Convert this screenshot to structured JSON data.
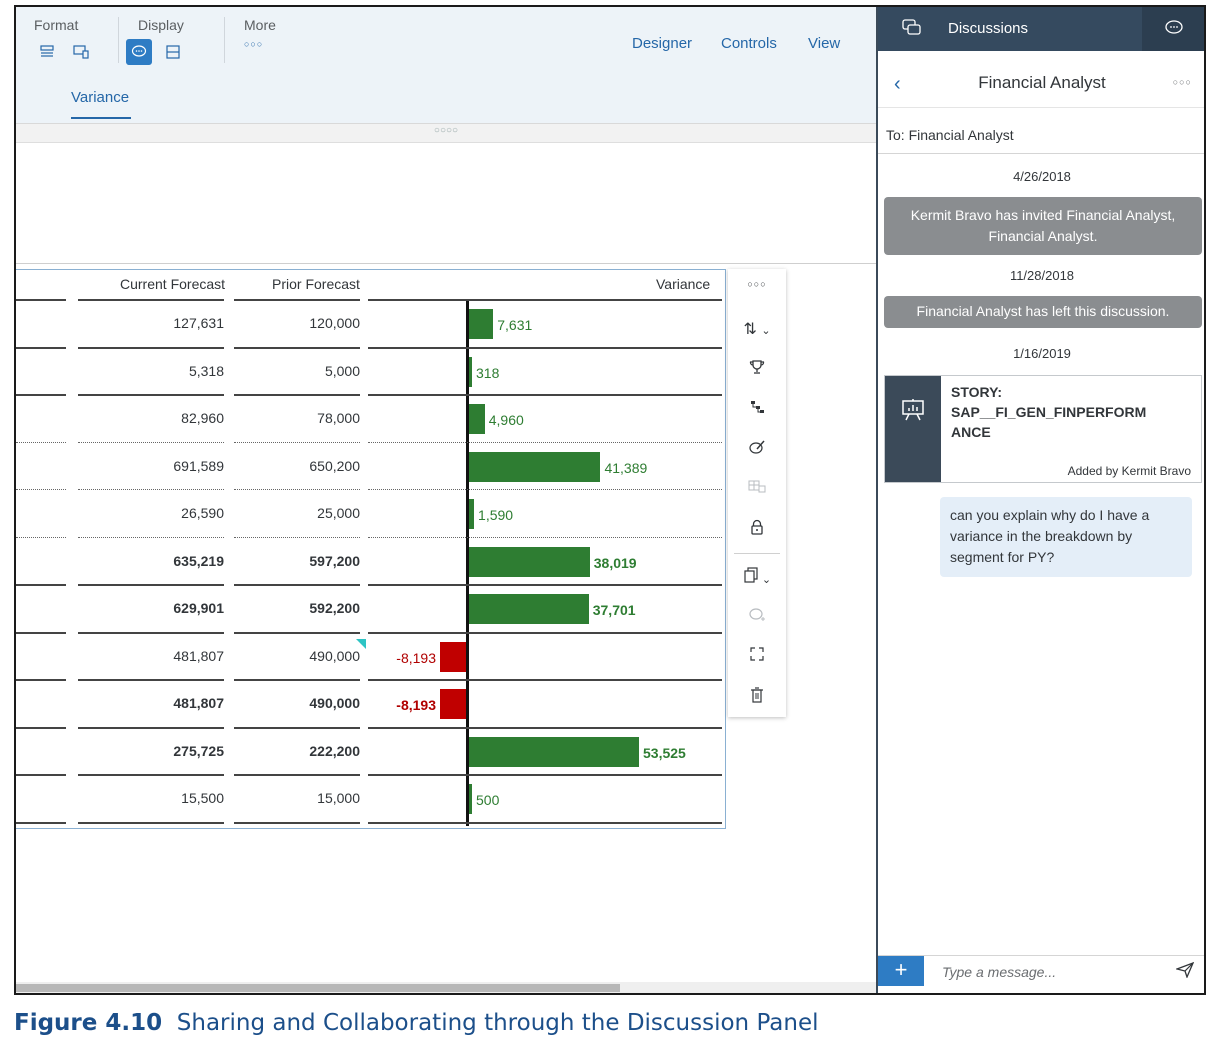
{
  "toolbar": {
    "groups": [
      {
        "label": "Format"
      },
      {
        "label": "Display"
      },
      {
        "label": "More",
        "more_glyph": "○○○"
      }
    ],
    "links": [
      "Designer",
      "Controls",
      "View"
    ],
    "tab": "Variance",
    "grip": "○○○○"
  },
  "table": {
    "columns": [
      "Current Forecast",
      "Prior Forecast",
      "Variance"
    ],
    "rows": [
      {
        "current": "127,631",
        "prior": "120,000",
        "variance": "7,631",
        "value": 7631,
        "bold": false
      },
      {
        "current": "5,318",
        "prior": "5,000",
        "variance": "318",
        "value": 318,
        "bold": false
      },
      {
        "current": "82,960",
        "prior": "78,000",
        "variance": "4,960",
        "value": 4960,
        "bold": false
      },
      {
        "current": "691,589",
        "prior": "650,200",
        "variance": "41,389",
        "value": 41389,
        "bold": false
      },
      {
        "current": "26,590",
        "prior": "25,000",
        "variance": "1,590",
        "value": 1590,
        "bold": false
      },
      {
        "current": "635,219",
        "prior": "597,200",
        "variance": "38,019",
        "value": 38019,
        "bold": true
      },
      {
        "current": "629,901",
        "prior": "592,200",
        "variance": "37,701",
        "value": 37701,
        "bold": true
      },
      {
        "current": "481,807",
        "prior": "490,000",
        "variance": "-8,193",
        "value": -8193,
        "bold": false
      },
      {
        "current": "481,807",
        "prior": "490,000",
        "variance": "-8,193",
        "value": -8193,
        "bold": true
      },
      {
        "current": "275,725",
        "prior": "222,200",
        "variance": "53,525",
        "value": 53525,
        "bold": true
      },
      {
        "current": "15,500",
        "prior": "15,000",
        "variance": "500",
        "value": 500,
        "bold": false
      }
    ]
  },
  "colors": {
    "positive": "#2e7d32",
    "negative": "#c00000",
    "accent": "#2e7cc4",
    "panel_header": "#354a5f"
  },
  "panel": {
    "header_title": "Discussions",
    "contact": "Financial Analyst",
    "more_glyph": "○○○",
    "to_line": "To: Financial Analyst",
    "messages": [
      {
        "date": "4/26/2018",
        "text": "Kermit Bravo has invited Financial Analyst, Financial Analyst."
      },
      {
        "date": "11/28/2018",
        "text": "Financial Analyst has left this discussion."
      },
      {
        "date": "1/16/2019"
      }
    ],
    "card": {
      "title": "STORY: SAP__FI_GEN_FINPERFORMANCE",
      "title_line1": "STORY:",
      "title_line2": "SAP__FI_GEN_FINPERFORM",
      "title_line3": "ANCE",
      "added_by": "Added by Kermit Bravo"
    },
    "user_message": "can you explain why do I have a variance in the breakdown by segment for PY?",
    "composer_placeholder": "Type a message...",
    "plus_label": "+"
  },
  "caption": {
    "label": "Figure 4.10",
    "text": "Sharing and Collaborating through the Discussion Panel"
  }
}
